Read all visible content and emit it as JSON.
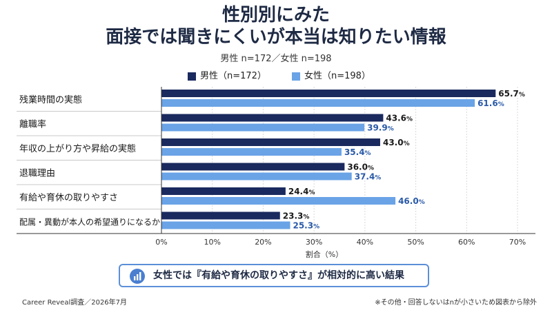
{
  "title_line1": "性別別にみた",
  "title_line2": "面接では聞きにくいが本当は知りたい情報",
  "subtitle": "男性 n=172／女性 n=198",
  "chart_data": {
    "type": "bar",
    "orientation": "horizontal",
    "categories": [
      "残業時間の実態",
      "離職率",
      "年収の上がり方や昇給の実態",
      "退職理由",
      "有給や育休の取りやすさ",
      "配属・異動が本人の希望通りになるか"
    ],
    "series": [
      {
        "name": "男性（n=172）",
        "color": "#1a2a5e",
        "values": [
          65.7,
          43.6,
          43.0,
          36.0,
          24.4,
          23.3
        ]
      },
      {
        "name": "女性（n=198）",
        "color": "#6aa3e6",
        "values": [
          61.6,
          39.9,
          35.4,
          37.4,
          46.0,
          25.3
        ]
      }
    ],
    "xlabel": "割合（%）",
    "xlim": [
      0,
      70
    ],
    "xticks": [
      "0%",
      "10%",
      "20%",
      "30%",
      "40%",
      "50%",
      "60%",
      "70%"
    ],
    "value_suffix": "%",
    "legend": "top-center"
  },
  "callout": {
    "icon": "bar-chart-icon",
    "text": "女性では『有給や育休の取りやすさ』が相対的に高い結果"
  },
  "source": "Career Reveal調査／2026年7月",
  "note": "※その他・回答しないはnが小さいため図表から除外"
}
